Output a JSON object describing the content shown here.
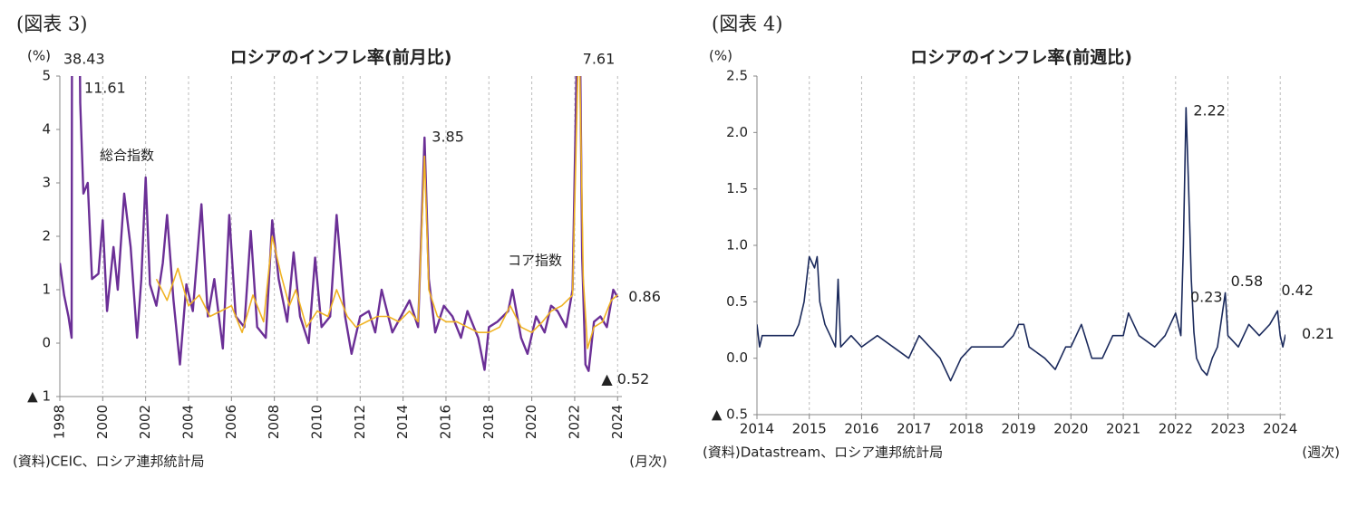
{
  "chart_data": [
    {
      "type": "line",
      "figure_label": "(図表 3)",
      "title": "ロシアのインフレ率(前月比)",
      "y_label": "(%)",
      "x_label": "(月次)",
      "source": "(資料)CEIC、ロシア連邦統計局",
      "xlim": [
        1998,
        2024.2
      ],
      "xticks": [
        1998,
        2000,
        2002,
        2004,
        2006,
        2008,
        2010,
        2012,
        2014,
        2016,
        2018,
        2020,
        2022,
        2024
      ],
      "ylim": [
        -1,
        5
      ],
      "yticks": [
        {
          "value": -1,
          "label": "▲ 1"
        },
        0,
        1,
        2,
        3,
        4,
        5
      ],
      "grid": "x",
      "series": [
        {
          "name": "総合指数",
          "color": "#6b2f96",
          "x": [
            1998.0,
            1998.2,
            1998.4,
            1998.55,
            1998.67,
            1998.8,
            1998.95,
            1999.1,
            1999.3,
            1999.5,
            1999.8,
            2000.0,
            2000.2,
            2000.5,
            2000.7,
            2001.0,
            2001.3,
            2001.6,
            2001.8,
            2002.0,
            2002.2,
            2002.5,
            2002.8,
            2003.0,
            2003.3,
            2003.6,
            2003.9,
            2004.2,
            2004.6,
            2004.9,
            2005.2,
            2005.6,
            2005.9,
            2006.2,
            2006.6,
            2006.9,
            2007.2,
            2007.6,
            2007.9,
            2008.2,
            2008.6,
            2008.9,
            2009.2,
            2009.6,
            2009.9,
            2010.2,
            2010.6,
            2010.9,
            2011.3,
            2011.6,
            2012.0,
            2012.4,
            2012.7,
            2013.0,
            2013.5,
            2013.9,
            2014.3,
            2014.7,
            2015.0,
            2015.2,
            2015.5,
            2015.9,
            2016.3,
            2016.7,
            2017.0,
            2017.5,
            2017.8,
            2018.0,
            2018.4,
            2018.9,
            2019.1,
            2019.5,
            2019.8,
            2020.2,
            2020.6,
            2020.9,
            2021.2,
            2021.6,
            2021.9,
            2022.2,
            2022.35,
            2022.5,
            2022.65,
            2022.9,
            2023.2,
            2023.5,
            2023.8,
            2024.0
          ],
          "values": [
            1.5,
            0.9,
            0.5,
            0.1,
            38.43,
            11.61,
            4.5,
            2.8,
            3.0,
            1.2,
            1.3,
            2.3,
            0.6,
            1.8,
            1.0,
            2.8,
            1.8,
            0.1,
            1.2,
            3.1,
            1.1,
            0.7,
            1.5,
            2.4,
            0.8,
            -0.4,
            1.1,
            0.6,
            2.6,
            0.5,
            1.2,
            -0.1,
            2.4,
            0.5,
            0.3,
            2.1,
            0.3,
            0.1,
            2.3,
            1.2,
            0.4,
            1.7,
            0.5,
            0.0,
            1.6,
            0.3,
            0.5,
            2.4,
            0.5,
            -0.2,
            0.5,
            0.6,
            0.2,
            1.0,
            0.2,
            0.5,
            0.8,
            0.3,
            3.85,
            1.2,
            0.2,
            0.7,
            0.5,
            0.1,
            0.6,
            0.1,
            -0.5,
            0.3,
            0.4,
            0.6,
            1.0,
            0.1,
            -0.2,
            0.5,
            0.2,
            0.7,
            0.6,
            0.3,
            1.0,
            7.61,
            1.6,
            -0.4,
            -0.52,
            0.4,
            0.5,
            0.3,
            1.0,
            0.86
          ],
          "value_labels": [
            null,
            null,
            null,
            null,
            "38.43",
            "11.61",
            null,
            null,
            null,
            null,
            null,
            null,
            null,
            null,
            null,
            null,
            null,
            null,
            null,
            null,
            null,
            null,
            null,
            null,
            null,
            null,
            null,
            null,
            null,
            null,
            null,
            null,
            null,
            null,
            null,
            null,
            null,
            null,
            null,
            null,
            null,
            null,
            null,
            null,
            null,
            null,
            null,
            null,
            null,
            null,
            null,
            null,
            null,
            null,
            null,
            null,
            null,
            null,
            "3.85",
            null,
            null,
            null,
            null,
            null,
            null,
            null,
            null,
            null,
            null,
            null,
            null,
            null,
            null,
            null,
            null,
            null,
            null,
            null,
            null,
            "7.61",
            null,
            null,
            "▲ 0.52",
            null,
            null,
            null,
            null,
            "0.86"
          ]
        },
        {
          "name": "コア指数",
          "color": "#f0b323",
          "x": [
            2002.5,
            2003.0,
            2003.5,
            2004.0,
            2004.5,
            2005.0,
            2005.5,
            2006.0,
            2006.5,
            2007.0,
            2007.5,
            2007.9,
            2008.3,
            2008.7,
            2009.0,
            2009.5,
            2010.0,
            2010.5,
            2010.9,
            2011.4,
            2011.8,
            2012.3,
            2012.8,
            2013.3,
            2013.8,
            2014.3,
            2014.7,
            2015.0,
            2015.2,
            2015.6,
            2016.0,
            2016.5,
            2017.0,
            2017.5,
            2018.0,
            2018.5,
            2019.0,
            2019.5,
            2020.0,
            2020.5,
            2020.9,
            2021.4,
            2021.9,
            2022.2,
            2022.4,
            2022.6,
            2022.9,
            2023.3,
            2023.7,
            2024.0
          ],
          "values": [
            1.2,
            0.8,
            1.4,
            0.7,
            0.9,
            0.5,
            0.6,
            0.7,
            0.2,
            0.9,
            0.4,
            2.0,
            1.3,
            0.7,
            1.0,
            0.3,
            0.6,
            0.5,
            1.0,
            0.5,
            0.3,
            0.4,
            0.5,
            0.5,
            0.4,
            0.6,
            0.4,
            3.5,
            1.0,
            0.5,
            0.4,
            0.4,
            0.3,
            0.2,
            0.2,
            0.3,
            0.7,
            0.3,
            0.2,
            0.4,
            0.6,
            0.7,
            0.9,
            6.0,
            1.2,
            -0.1,
            0.3,
            0.4,
            0.8,
            0.9
          ]
        }
      ]
    },
    {
      "type": "line",
      "figure_label": "(図表 4)",
      "title": "ロシアのインフレ率(前週比)",
      "y_label": "(%)",
      "x_label": "(週次)",
      "source": "(資料)Datastream、ロシア連邦統計局",
      "xlim": [
        2014,
        2024.1
      ],
      "xticks": [
        2014,
        2015,
        2016,
        2017,
        2018,
        2019,
        2020,
        2021,
        2022,
        2023,
        2024
      ],
      "ylim": [
        -0.5,
        2.5
      ],
      "yticks": [
        {
          "value": -0.5,
          "label": "▲ 0.5"
        },
        {
          "value": 0,
          "label": "0.0"
        },
        0.5,
        {
          "value": 1,
          "label": "1.0"
        },
        1.5,
        {
          "value": 2,
          "label": "2.0"
        },
        2.5
      ],
      "grid": "x",
      "series": [
        {
          "name": null,
          "color": "#1b2a5c",
          "x": [
            2014.0,
            2014.05,
            2014.1,
            2014.5,
            2014.7,
            2014.8,
            2014.9,
            2015.0,
            2015.1,
            2015.15,
            2015.2,
            2015.3,
            2015.4,
            2015.5,
            2015.55,
            2015.6,
            2015.8,
            2016.0,
            2016.3,
            2016.6,
            2016.9,
            2017.1,
            2017.3,
            2017.5,
            2017.6,
            2017.7,
            2017.9,
            2018.1,
            2018.4,
            2018.7,
            2018.9,
            2019.0,
            2019.1,
            2019.2,
            2019.5,
            2019.7,
            2019.9,
            2020.0,
            2020.2,
            2020.4,
            2020.6,
            2020.8,
            2021.0,
            2021.1,
            2021.3,
            2021.6,
            2021.8,
            2022.0,
            2022.1,
            2022.15,
            2022.2,
            2022.25,
            2022.3,
            2022.35,
            2022.4,
            2022.5,
            2022.6,
            2022.7,
            2022.8,
            2022.95,
            2023.0,
            2023.2,
            2023.4,
            2023.6,
            2023.8,
            2023.95,
            2024.0,
            2024.05,
            2024.1
          ],
          "values": [
            0.3,
            0.1,
            0.2,
            0.2,
            0.2,
            0.3,
            0.5,
            0.9,
            0.8,
            0.9,
            0.5,
            0.3,
            0.2,
            0.1,
            0.7,
            0.1,
            0.2,
            0.1,
            0.2,
            0.1,
            0.0,
            0.2,
            0.1,
            0.0,
            -0.1,
            -0.2,
            0.0,
            0.1,
            0.1,
            0.1,
            0.2,
            0.3,
            0.3,
            0.1,
            0.0,
            -0.1,
            0.1,
            0.1,
            0.3,
            0.0,
            0.0,
            0.2,
            0.2,
            0.4,
            0.2,
            0.1,
            0.2,
            0.4,
            0.2,
            1.0,
            2.22,
            1.5,
            0.7,
            0.23,
            0.0,
            -0.1,
            -0.15,
            0.0,
            0.1,
            0.58,
            0.2,
            0.1,
            0.3,
            0.2,
            0.3,
            0.42,
            0.2,
            0.1,
            0.21
          ],
          "value_labels": [
            null,
            null,
            null,
            null,
            null,
            null,
            null,
            null,
            null,
            null,
            null,
            null,
            null,
            null,
            null,
            null,
            null,
            null,
            null,
            null,
            null,
            null,
            null,
            null,
            null,
            null,
            null,
            null,
            null,
            null,
            null,
            null,
            null,
            null,
            null,
            null,
            null,
            null,
            null,
            null,
            null,
            null,
            null,
            null,
            null,
            null,
            null,
            null,
            null,
            null,
            "2.22",
            null,
            null,
            "0.23",
            null,
            null,
            null,
            null,
            null,
            "0.58",
            null,
            null,
            null,
            null,
            null,
            "0.42",
            null,
            null,
            "0.21"
          ]
        }
      ]
    }
  ]
}
